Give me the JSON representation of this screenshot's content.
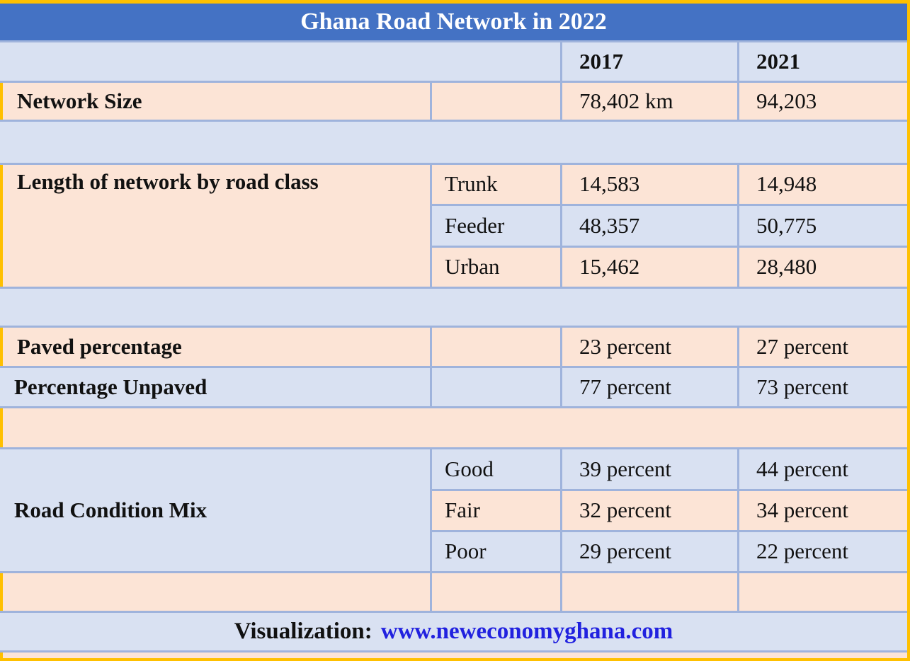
{
  "title": "Ghana Road Network in 2022",
  "header": {
    "y2017": "2017",
    "y2021": "2021"
  },
  "network_size": {
    "label": "Network Size",
    "v2017": "78,402 km",
    "v2021": "94,203"
  },
  "road_class": {
    "label": "Length of network by road class",
    "rows": [
      {
        "name": "Trunk",
        "v2017": "14,583",
        "v2021": "14,948"
      },
      {
        "name": "Feeder",
        "v2017": "48,357",
        "v2021": "50,775"
      },
      {
        "name": "Urban",
        "v2017": "15,462",
        "v2021": "28,480"
      }
    ]
  },
  "paved": {
    "label": "Paved percentage",
    "v2017": "23  percent",
    "v2021": "27 percent"
  },
  "unpaved": {
    "label": "Percentage Unpaved",
    "v2017": "77 percent",
    "v2021": "73 percent"
  },
  "condition": {
    "label": "Road Condition Mix",
    "rows": [
      {
        "name": "Good",
        "v2017": "39 percent",
        "v2021": "44 percent"
      },
      {
        "name": "Fair",
        "v2017": "32 percent",
        "v2021": "34 percent"
      },
      {
        "name": "Poor",
        "v2017": "29 percent",
        "v2021": "22 percent"
      }
    ]
  },
  "footer": {
    "prefix": "Visualization:",
    "link": "www.neweconomyghana.com"
  },
  "colors": {
    "title_bar": "#4472C4",
    "peach_cell": "#FCE4D6",
    "light_blue_cell": "#D9E1F2",
    "grid_line": "#9FB3DC",
    "gold_border": "#FFC000",
    "link_blue": "#2121DF"
  },
  "chart_data": {
    "type": "table",
    "title": "Ghana Road Network in 2022",
    "columns": [
      "",
      "",
      "2017",
      "2021"
    ],
    "rows": [
      [
        "Network Size",
        "",
        "78,402 km",
        "94,203"
      ],
      [
        "Length of network by road class",
        "Trunk",
        "14,583",
        "14,948"
      ],
      [
        "Length of network by road class",
        "Feeder",
        "48,357",
        "50,775"
      ],
      [
        "Length of network by road class",
        "Urban",
        "15,462",
        "28,480"
      ],
      [
        "Paved percentage",
        "",
        "23 percent",
        "27 percent"
      ],
      [
        "Percentage Unpaved",
        "",
        "77 percent",
        "73 percent"
      ],
      [
        "Road Condition Mix",
        "Good",
        "39 percent",
        "44 percent"
      ],
      [
        "Road Condition Mix",
        "Fair",
        "32 percent",
        "34 percent"
      ],
      [
        "Road Condition Mix",
        "Poor",
        "29 percent",
        "22 percent"
      ]
    ],
    "footer": "Visualization: www.neweconomyghana.com"
  }
}
